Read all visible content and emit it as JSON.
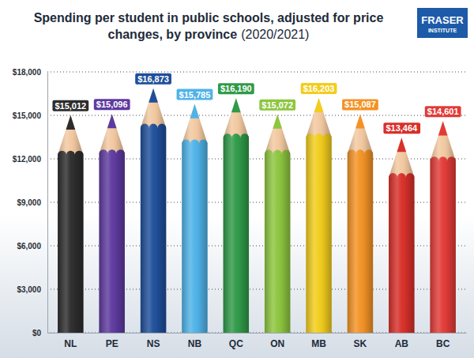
{
  "chart_data": {
    "type": "bar",
    "title": "Spending per student in public schools, adjusted for price changes, by province",
    "subtitle": "(2020/2021)",
    "annotations": [
      "FRASER",
      "INSTITUTE"
    ],
    "categories": [
      "NL",
      "PE",
      "NS",
      "NB",
      "QC",
      "ON",
      "MB",
      "SK",
      "AB",
      "BC"
    ],
    "values": [
      15012,
      15096,
      16873,
      15785,
      16190,
      15072,
      16203,
      15087,
      13464,
      14601
    ],
    "value_labels": [
      "$15,012",
      "$15,096",
      "$16,873",
      "$15,785",
      "$16,190",
      "$15,072",
      "$16,203",
      "$15,087",
      "$13,464",
      "$14,601"
    ],
    "colors": [
      "#2d2d2d",
      "#5e3a9f",
      "#1f4f9a",
      "#4fb3e8",
      "#2f9a48",
      "#8dc63f",
      "#f2cd1c",
      "#f39325",
      "#d8302a",
      "#e23b37"
    ],
    "ylim": [
      0,
      18000
    ],
    "yticks": [
      {
        "value": 0,
        "label": "$0"
      },
      {
        "value": 3000,
        "label": "$3,000"
      },
      {
        "value": 6000,
        "label": "$6,000"
      },
      {
        "value": 9000,
        "label": "$9,000"
      },
      {
        "value": 12000,
        "label": "$12,000"
      },
      {
        "value": 15000,
        "label": "$15,000"
      },
      {
        "value": 18000,
        "label": "$18,000"
      }
    ],
    "grid": true,
    "data_labels": true
  }
}
